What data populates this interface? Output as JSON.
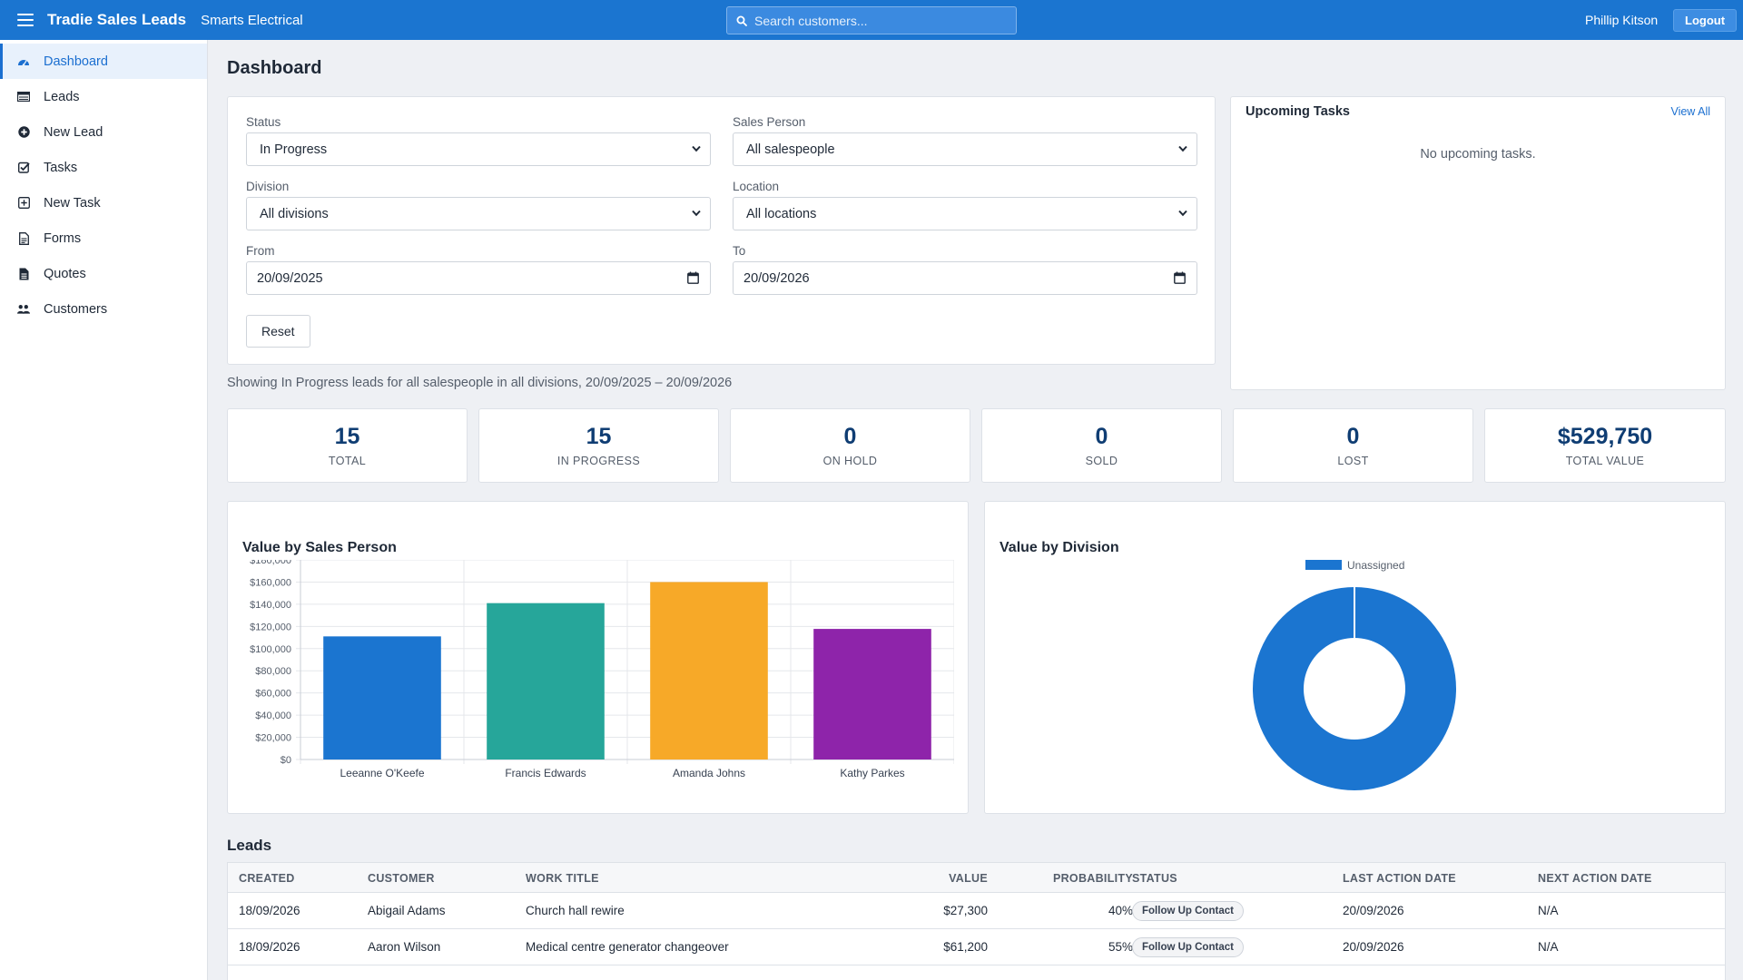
{
  "topbar": {
    "app_title": "Tradie Sales Leads",
    "company": "Smarts Electrical",
    "search_placeholder": "Search customers...",
    "user_name": "Phillip Kitson",
    "logout_label": "Logout"
  },
  "sidebar": {
    "items": [
      {
        "label": "Dashboard",
        "icon": "dashboard-icon",
        "active": true
      },
      {
        "label": "Leads",
        "icon": "list-icon"
      },
      {
        "label": "New Lead",
        "icon": "plus-circle-icon"
      },
      {
        "label": "Tasks",
        "icon": "check-square-icon"
      },
      {
        "label": "New Task",
        "icon": "plus-square-icon"
      },
      {
        "label": "Forms",
        "icon": "form-icon"
      },
      {
        "label": "Quotes",
        "icon": "document-icon"
      },
      {
        "label": "Customers",
        "icon": "users-icon"
      }
    ]
  },
  "page": {
    "title": "Dashboard"
  },
  "filters": {
    "status_label": "Status",
    "status_value": "In Progress",
    "salesperson_label": "Sales Person",
    "salesperson_value": "All salespeople",
    "division_label": "Division",
    "division_value": "All divisions",
    "location_label": "Location",
    "location_value": "All locations",
    "from_label": "From",
    "from_value": "20/09/2025",
    "to_label": "To",
    "to_value": "20/09/2026",
    "reset_label": "Reset"
  },
  "summary_text": "Showing In Progress leads for all salespeople in all divisions, 20/09/2025 – 20/09/2026",
  "tasks": {
    "title": "Upcoming Tasks",
    "view_all": "View All",
    "empty_text": "No upcoming tasks."
  },
  "stats": [
    {
      "value": "15",
      "label": "TOTAL"
    },
    {
      "value": "15",
      "label": "IN PROGRESS"
    },
    {
      "value": "0",
      "label": "ON HOLD"
    },
    {
      "value": "0",
      "label": "SOLD"
    },
    {
      "value": "0",
      "label": "LOST"
    },
    {
      "value": "$529,750",
      "label": "TOTAL VALUE"
    }
  ],
  "charts": {
    "salesperson_title": "Value by Sales Person",
    "division_title": "Value by Division"
  },
  "chart_data": [
    {
      "type": "bar",
      "title": "Value by Sales Person",
      "categories": [
        "Leeanne O'Keefe",
        "Francis Edwards",
        "Amanda Johns",
        "Kathy Parkes"
      ],
      "values": [
        111000,
        141000,
        160000,
        117750
      ],
      "colors": [
        "#1b75d0",
        "#26a69a",
        "#f7a928",
        "#8e24aa"
      ],
      "ylim": [
        0,
        180000
      ],
      "yticks": [
        "$0",
        "$20,000",
        "$40,000",
        "$60,000",
        "$80,000",
        "$100,000",
        "$120,000",
        "$140,000",
        "$160,000",
        "$180,000"
      ],
      "grid": true
    },
    {
      "type": "pie",
      "title": "Value by Division",
      "labels": [
        "Unassigned"
      ],
      "values": [
        529750
      ],
      "colors": [
        "#1b75d0"
      ],
      "legend": "top"
    }
  ],
  "leads": {
    "title": "Leads",
    "columns": [
      "CREATED",
      "CUSTOMER",
      "WORK TITLE",
      "VALUE",
      "PROBABILITY",
      "STATUS",
      "LAST ACTION DATE",
      "NEXT ACTION DATE"
    ],
    "rows": [
      {
        "created": "18/09/2026",
        "customer": "Abigail Adams",
        "work_title": "Church hall rewire",
        "value": "$27,300",
        "probability": "40%",
        "status": "Follow Up Contact",
        "last_action": "20/09/2026",
        "next_action": "N/A"
      },
      {
        "created": "18/09/2026",
        "customer": "Aaron Wilson",
        "work_title": "Medical centre generator changeover",
        "value": "$61,200",
        "probability": "55%",
        "status": "Follow Up Contact",
        "last_action": "20/09/2026",
        "next_action": "N/A"
      }
    ]
  }
}
